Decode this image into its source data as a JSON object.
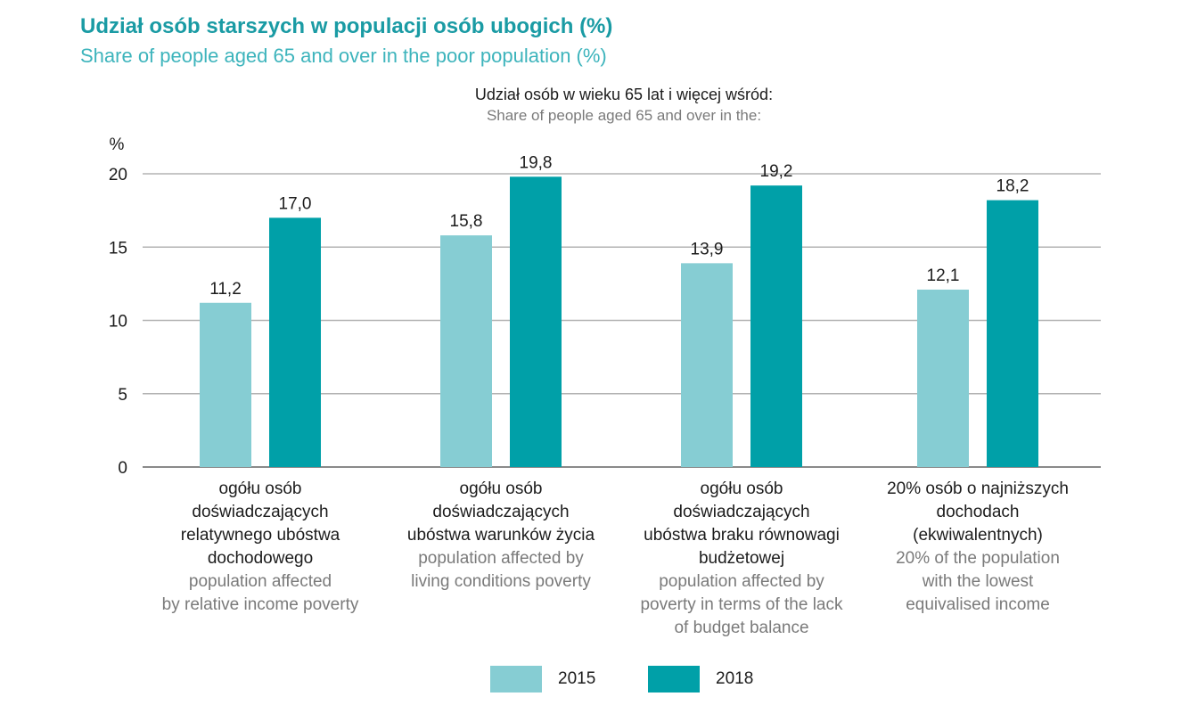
{
  "header": {
    "title_pl": "Udział osób starszych w populacji osób ubogich (%)",
    "title_en": "Share of people aged 65 and over in the poor population (%)",
    "subtitle_pl": "Udział osób w wieku 65 lat i więcej wśród:",
    "subtitle_en": "Share of people aged 65 and over in the:"
  },
  "colors": {
    "series_2015": "#86cdd3",
    "series_2018": "#00a0a8",
    "grid": "#b3b3b3",
    "title": "#1a9ba4"
  },
  "chart_data": {
    "type": "bar",
    "ylabel": "%",
    "ylim": [
      0,
      20
    ],
    "yticks": [
      0,
      5,
      10,
      15,
      20
    ],
    "grid": true,
    "legend_position": "bottom",
    "categories": [
      {
        "pl": "ogółu osób\ndoświadczających\nrelatywnego ubóstwa\ndochodowego",
        "en": "population  affected\nby relative income poverty"
      },
      {
        "pl": "ogółu osób\ndoświadczających\nubóstwa warunków życia",
        "en": "population affected by\nliving conditions poverty"
      },
      {
        "pl": "ogółu osób\ndoświadczających\nubóstwa braku równowagi\nbudżetowej",
        "en": "population affected by\npoverty in terms of the lack\nof budget balance"
      },
      {
        "pl": "20% osób o najniższych\ndochodach\n(ekwiwalentnych)",
        "en": "20% of the population\nwith the lowest\nequivalised income"
      }
    ],
    "series": [
      {
        "name": "2015",
        "values": [
          11.2,
          15.8,
          13.9,
          12.1
        ],
        "labels": [
          "11,2",
          "15,8",
          "13,9",
          "12,1"
        ]
      },
      {
        "name": "2018",
        "values": [
          17.0,
          19.8,
          19.2,
          18.2
        ],
        "labels": [
          "17,0",
          "19,8",
          "19,2",
          "18,2"
        ]
      }
    ]
  }
}
